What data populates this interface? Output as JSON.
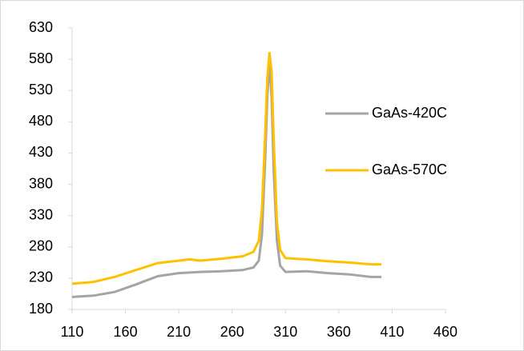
{
  "chart_data": {
    "type": "line",
    "series": [
      {
        "name": "GaAs-420C",
        "color": "#a5a5a5",
        "x": [
          110,
          130,
          150,
          170,
          190,
          210,
          230,
          250,
          270,
          280,
          285,
          288,
          291,
          293,
          295,
          297,
          299,
          302,
          305,
          310,
          330,
          350,
          370,
          390,
          400
        ],
        "values": [
          200,
          202,
          208,
          220,
          233,
          238,
          240,
          241,
          243,
          247,
          258,
          300,
          420,
          520,
          575,
          520,
          400,
          290,
          250,
          240,
          241,
          238,
          236,
          232,
          232
        ]
      },
      {
        "name": "GaAs-570C",
        "color": "#ffc000",
        "x": [
          110,
          130,
          150,
          170,
          190,
          210,
          220,
          230,
          250,
          270,
          280,
          285,
          288,
          291,
          293,
          295,
          297,
          299,
          302,
          305,
          310,
          330,
          350,
          370,
          390,
          400
        ],
        "values": [
          221,
          224,
          232,
          243,
          254,
          258,
          260,
          258,
          261,
          265,
          272,
          290,
          340,
          460,
          550,
          590,
          560,
          450,
          320,
          275,
          262,
          260,
          257,
          255,
          252,
          252
        ]
      }
    ],
    "xlim": [
      110,
      460
    ],
    "xticks": [
      110,
      160,
      210,
      260,
      310,
      360,
      410,
      460
    ],
    "ylim": [
      180,
      630
    ],
    "yticks": [
      180,
      230,
      280,
      330,
      380,
      430,
      480,
      530,
      580,
      630
    ],
    "legend": "right"
  }
}
